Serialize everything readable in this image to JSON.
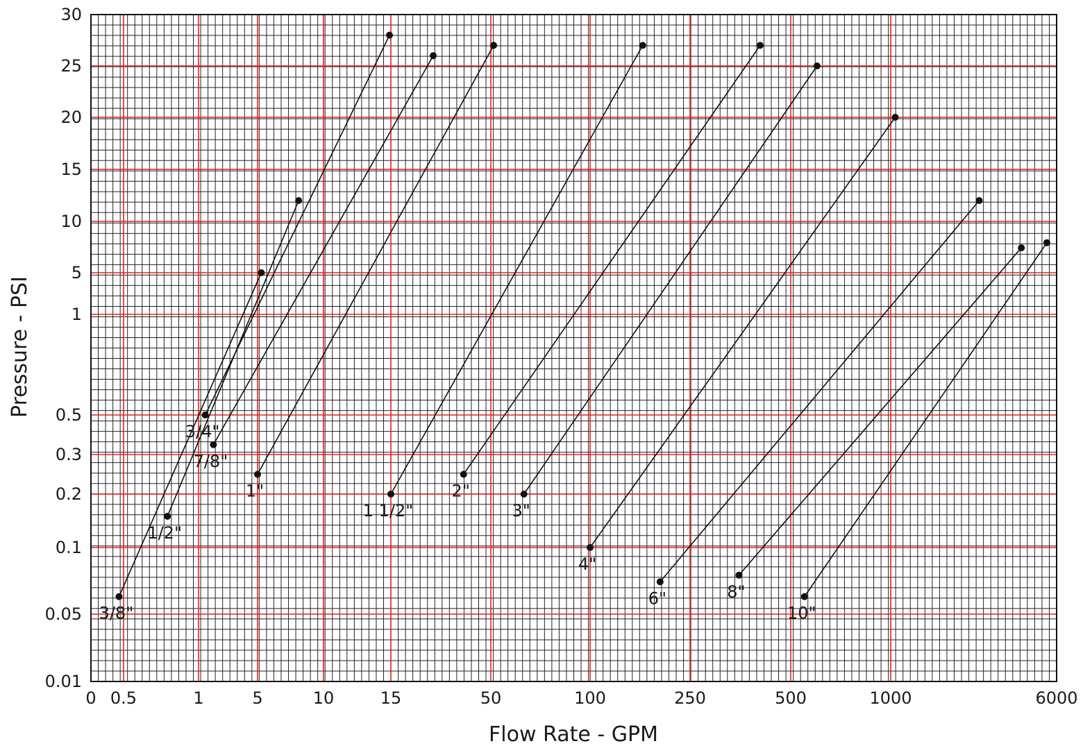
{
  "chart_data": {
    "type": "line",
    "xlabel": "Flow Rate - GPM",
    "ylabel": "Pressure - PSI",
    "x_ticks": [
      "0",
      "0.5",
      "1",
      "5",
      "10",
      "15",
      "50",
      "100",
      "250",
      "500",
      "1000",
      "6000"
    ],
    "y_ticks": [
      "0.01",
      "0.05",
      "0.1",
      "0.2",
      "0.3",
      "0.5",
      "1",
      "5",
      "10",
      "15",
      "20",
      "25",
      "30"
    ],
    "grid": true,
    "colors": {
      "major_grid": "#e8201c",
      "minor_grid": "#222222",
      "series": "#111111"
    },
    "series": [
      {
        "name": "3/8\"",
        "points": [
          [
            0.43,
            0.06
          ],
          [
            5.2,
            5
          ]
        ]
      },
      {
        "name": "1/2\"",
        "points": [
          [
            0.75,
            0.15
          ],
          [
            7.7,
            12
          ]
        ]
      },
      {
        "name": "3/4\"",
        "points": [
          [
            1.2,
            0.5
          ],
          [
            14.9,
            28
          ]
        ]
      },
      {
        "name": "7/8\"",
        "points": [
          [
            1.5,
            0.35
          ],
          [
            25,
            26
          ]
        ]
      },
      {
        "name": "1\"",
        "points": [
          [
            5,
            0.25
          ],
          [
            51,
            27
          ]
        ]
      },
      {
        "name": "1 1/2\"",
        "points": [
          [
            15,
            0.2
          ],
          [
            162,
            27
          ]
        ]
      },
      {
        "name": "2\"",
        "points": [
          [
            36,
            0.25
          ],
          [
            405,
            27
          ]
        ]
      },
      {
        "name": "3\"",
        "points": [
          [
            63,
            0.2
          ],
          [
            600,
            25
          ]
        ]
      },
      {
        "name": "4\"",
        "points": [
          [
            100,
            0.1
          ],
          [
            1050,
            20
          ]
        ]
      },
      {
        "name": "6\"",
        "points": [
          [
            190,
            0.07
          ],
          [
            2600,
            12
          ]
        ]
      },
      {
        "name": "8\"",
        "points": [
          [
            350,
            0.075
          ],
          [
            4100,
            7
          ]
        ]
      },
      {
        "name": "10\"",
        "points": [
          [
            550,
            0.06
          ],
          [
            5400,
            7.5
          ]
        ]
      }
    ]
  }
}
